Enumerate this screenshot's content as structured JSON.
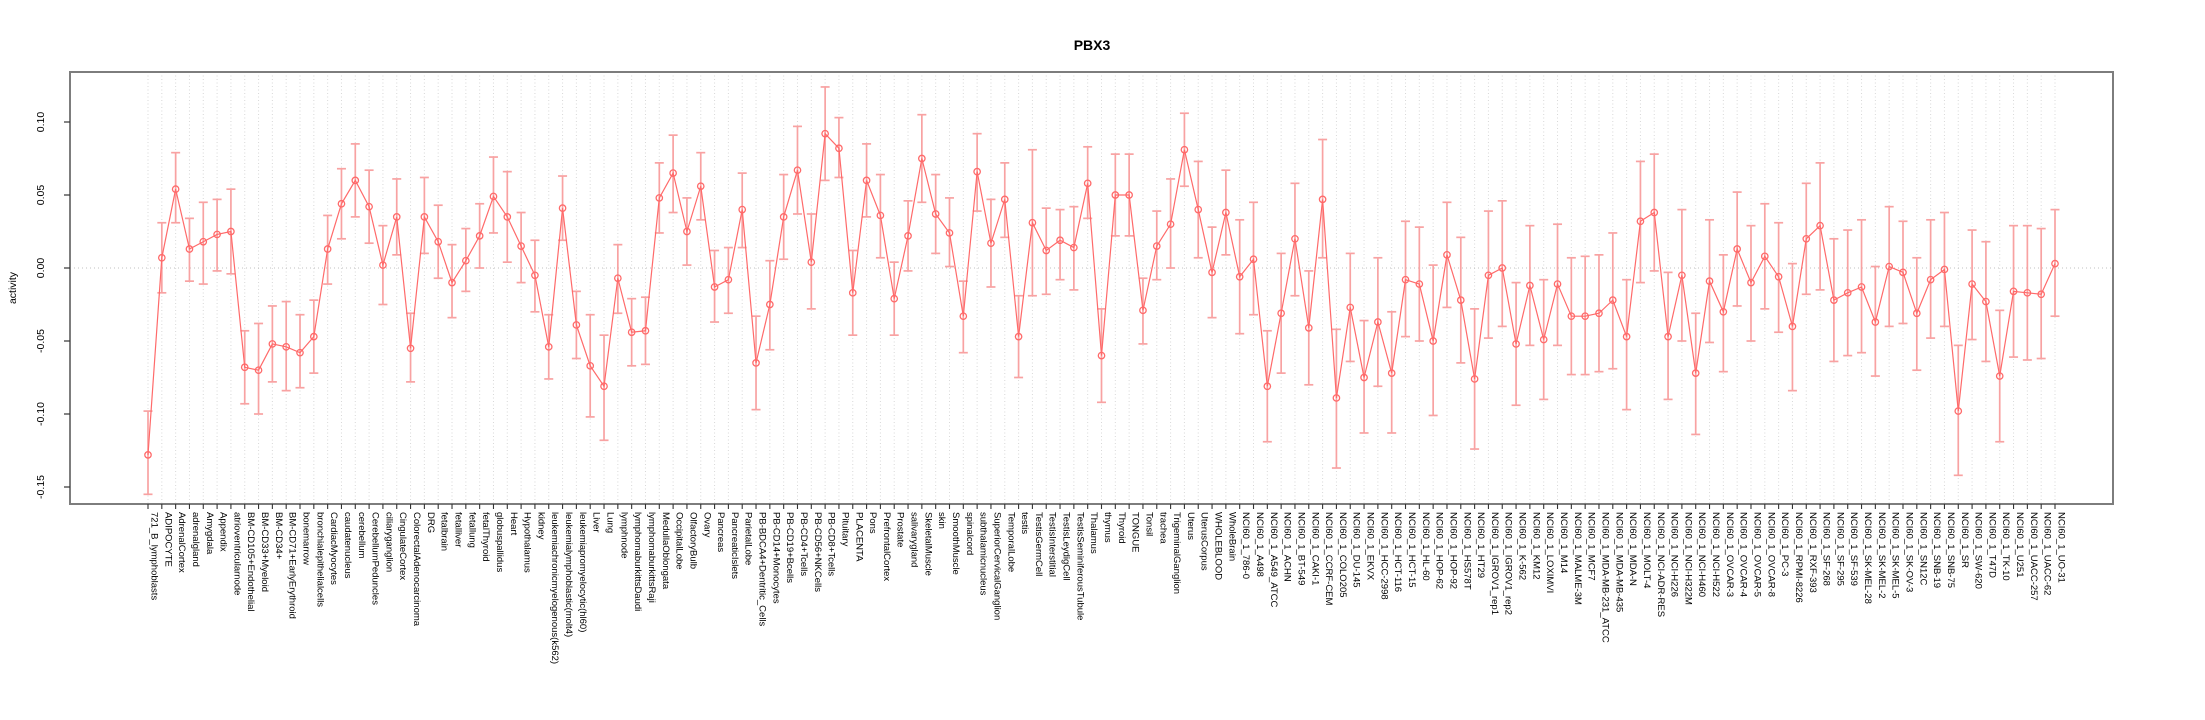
{
  "chart_data": {
    "type": "line",
    "title": "PBX3",
    "xlabel": "",
    "ylabel": "activity",
    "legend": "none",
    "grid": "vertical-dotted-per-category, dotted-zero-line",
    "point_style": "open-circle with error bars",
    "ylim": [
      -0.162,
      0.134
    ],
    "ytick_values": [
      0.1,
      0.05,
      0.0,
      -0.05,
      -0.1,
      -0.15
    ],
    "ytick_labels": [
      "0.10",
      "0.05",
      "0.00",
      "-0.05",
      "-0.10",
      "-0.15"
    ],
    "colors": {
      "series": "#ff6a6a",
      "error_bar": "#f8a2a2",
      "grid": "#d8d8d8",
      "zero_line": "#c0c0c0",
      "box": "#7d7d7d"
    },
    "categories": [
      "721_B_lymphoblasts",
      "ADIPOCYTE",
      "AdrenalCortex",
      "adrenalgland",
      "Amygdala",
      "Appendix",
      "atrioventricularnode",
      "BM-CD105+Endothelial",
      "BM-CD33+Myeloid",
      "BM-CD34+",
      "BM-CD71+EarlyErythroid",
      "bonemarrow",
      "bronchialepithelialcells",
      "CardiacMyocytes",
      "caudatenucleus",
      "cerebellum",
      "CerebellumPeduncles",
      "ciliaryganglion",
      "CingulateCortex",
      "ColorectalAdenocarcinoma",
      "DRG",
      "fetalbrain",
      "fetalliver",
      "fetallung",
      "fetalThyroid",
      "globuspallidus",
      "Heart",
      "Hypothalamus",
      "kidney",
      "leukemiachronicmyelogenous(k562)",
      "leukemialymphoblastic(molt4)",
      "leukemiapromyelocytic(hl60)",
      "Liver",
      "Lung",
      "lymphnode",
      "lymphomaburkittsDaudi",
      "lymphomaburkittsRaji",
      "MedullaOblongata",
      "OccipitalLobe",
      "OlfactoryBulb",
      "Ovary",
      "Pancreas",
      "PancreaticIslets",
      "ParietalLobe",
      "PB-BDCA4+Dentritic_Cells",
      "PB-CD14+Monocytes",
      "PB-CD19+Bcells",
      "PB-CD4+Tcells",
      "PB-CD56+NKCells",
      "PB-CD8+Tcells",
      "Pituitary",
      "PLACENTA",
      "Pons",
      "PrefrontalCortex",
      "Prostate",
      "salivarygland",
      "SkeletalMuscle",
      "skin",
      "SmoothMuscle",
      "spinalcord",
      "subthalamicnucleus",
      "SuperiorCervicalGanglion",
      "TemporalLobe",
      "testis",
      "TestisGermCell",
      "TestisInterstitial",
      "TestisLeydigCell",
      "TestisSeminiferousTubule",
      "Thalamus",
      "thymus",
      "Thyroid",
      "TONGUE",
      "Tonsil",
      "trachea",
      "TrigeminalGanglion",
      "Uterus",
      "UterusCorpus",
      "WHOLEBLOOD",
      "WholeBrain",
      "NCI60_1_786-0",
      "NCI60_1_A498",
      "NCI60_1_A549_ATCC",
      "NCI60_1_ACHN",
      "NCI60_1_BT-549",
      "NCI60_1_CAKI-1",
      "NCI60_1_CCRF-CEM",
      "NCI60_1_COLO205",
      "NCI60_1_DU-145",
      "NCI60_1_EKVX",
      "NCI60_1_HCC-2998",
      "NCI60_1_HCT-116",
      "NCI60_1_HCT-15",
      "NCI60_1_HL-60",
      "NCI60_1_HOP-62",
      "NCI60_1_HOP-92",
      "NCI60_1_HS578T",
      "NCI60_1_HT29",
      "NCI60_1_IGROV1_rep1",
      "NCI60_1_IGROV1_rep2",
      "NCI60_1_K-562",
      "NCI60_1_KM12",
      "NCI60_1_LOXIMVI",
      "NCI60_1_M14",
      "NCI60_1_MALME-3M",
      "NCI60_1_MCF7",
      "NCI60_1_MDA-MB-231_ATCC",
      "NCI60_1_MDA-MB-435",
      "NCI60_1_MDA-N",
      "NCI60_1_MOLT-4",
      "NCI60_1_NCI-ADR-RES",
      "NCI60_1_NCI-H226",
      "NCI60_1_NCI-H322M",
      "NCI60_1_NCI-H460",
      "NCI60_1_NCI-H522",
      "NCI60_1_OVCAR-3",
      "NCI60_1_OVCAR-4",
      "NCI60_1_OVCAR-5",
      "NCI60_1_OVCAR-8",
      "NCI60_1_PC-3",
      "NCI60_1_RPMI-8226",
      "NCI60_1_RXF-393",
      "NCI60_1_SF-268",
      "NCI60_1_SF-295",
      "NCI60_1_SF-539",
      "NCI60_1_SK-MEL-28",
      "NCI60_1_SK-MEL-2",
      "NCI60_1_SK-MEL-5",
      "NCI60_1_SK-OV-3",
      "NCI60_1_SN12C",
      "NCI60_1_SNB-19",
      "NCI60_1_SNB-75",
      "NCI60_1_SR",
      "NCI60_1_SW-620",
      "NCI60_1_T47D",
      "NCI60_1_TK-10",
      "NCI60_1_U251",
      "NCI60_1_UACC-257",
      "NCI60_1_UACC-62",
      "NCI60_1_UO-31"
    ],
    "values": [
      -0.128,
      0.007,
      0.054,
      0.013,
      0.018,
      0.023,
      0.025,
      -0.068,
      -0.07,
      -0.052,
      -0.054,
      -0.058,
      -0.047,
      0.013,
      0.044,
      0.06,
      0.042,
      0.002,
      0.035,
      -0.055,
      0.035,
      0.018,
      -0.01,
      0.005,
      0.022,
      0.049,
      0.035,
      0.015,
      -0.005,
      -0.054,
      0.041,
      -0.039,
      -0.067,
      -0.081,
      -0.007,
      -0.044,
      -0.043,
      0.048,
      0.065,
      0.025,
      0.056,
      -0.013,
      -0.008,
      0.04,
      -0.065,
      -0.025,
      0.035,
      0.067,
      0.004,
      0.092,
      0.082,
      -0.017,
      0.06,
      0.036,
      -0.021,
      0.022,
      0.075,
      0.037,
      0.024,
      -0.033,
      0.066,
      0.017,
      0.047,
      -0.047,
      0.031,
      0.012,
      0.019,
      0.014,
      0.058,
      -0.06,
      0.05,
      0.05,
      -0.029,
      0.015,
      0.03,
      0.081,
      0.04,
      -0.003,
      0.038,
      -0.006,
      0.006,
      -0.081,
      -0.031,
      0.02,
      -0.041,
      0.047,
      -0.089,
      -0.027,
      -0.075,
      -0.037,
      -0.072,
      -0.008,
      -0.011,
      -0.05,
      0.009,
      -0.022,
      -0.076,
      -0.005,
      0.0,
      -0.052,
      -0.012,
      -0.049,
      -0.011,
      -0.033,
      -0.033,
      -0.031,
      -0.022,
      -0.047,
      0.032,
      0.038,
      -0.047,
      -0.005,
      -0.072,
      -0.009,
      -0.03,
      0.013,
      -0.01,
      0.008,
      -0.006,
      -0.04,
      0.02,
      0.029,
      -0.022,
      -0.017,
      -0.013,
      -0.037,
      0.001,
      -0.003,
      -0.031,
      -0.008,
      -0.001,
      -0.098,
      -0.011,
      -0.023,
      -0.074,
      -0.016,
      -0.017,
      -0.018,
      0.003
    ],
    "ci_high": [
      -0.098,
      0.031,
      0.079,
      0.034,
      0.045,
      0.047,
      0.054,
      -0.043,
      -0.038,
      -0.026,
      -0.023,
      -0.032,
      -0.022,
      0.036,
      0.068,
      0.085,
      0.067,
      0.029,
      0.061,
      -0.031,
      0.062,
      0.043,
      0.016,
      0.027,
      0.044,
      0.076,
      0.066,
      0.038,
      0.019,
      -0.032,
      0.063,
      -0.016,
      -0.032,
      -0.046,
      0.016,
      -0.021,
      -0.02,
      0.072,
      0.091,
      0.048,
      0.079,
      0.012,
      0.014,
      0.065,
      -0.033,
      0.005,
      0.064,
      0.097,
      0.037,
      0.124,
      0.103,
      0.012,
      0.085,
      0.064,
      0.004,
      0.046,
      0.105,
      0.064,
      0.048,
      -0.009,
      0.092,
      0.047,
      0.072,
      -0.019,
      0.081,
      0.041,
      0.04,
      0.042,
      0.083,
      -0.028,
      0.078,
      0.078,
      -0.007,
      0.039,
      0.061,
      0.106,
      0.073,
      0.028,
      0.067,
      0.033,
      0.045,
      -0.043,
      0.01,
      0.058,
      -0.002,
      0.088,
      -0.042,
      0.01,
      -0.036,
      0.007,
      -0.03,
      0.032,
      0.028,
      0.002,
      0.045,
      0.021,
      -0.028,
      0.039,
      0.046,
      -0.01,
      0.029,
      -0.008,
      0.03,
      0.007,
      0.008,
      0.009,
      0.024,
      -0.008,
      0.073,
      0.078,
      -0.003,
      0.04,
      -0.031,
      0.033,
      0.009,
      0.052,
      0.029,
      0.044,
      0.031,
      0.003,
      0.058,
      0.072,
      0.02,
      0.026,
      0.033,
      0.001,
      0.042,
      0.032,
      0.007,
      0.033,
      0.038,
      -0.053,
      0.026,
      0.018,
      -0.029,
      0.029,
      0.029,
      0.027,
      0.04
    ],
    "ci_low": [
      -0.155,
      -0.017,
      0.031,
      -0.009,
      -0.011,
      -0.002,
      -0.004,
      -0.093,
      -0.1,
      -0.078,
      -0.084,
      -0.082,
      -0.072,
      -0.011,
      0.02,
      0.035,
      0.017,
      -0.025,
      0.009,
      -0.078,
      0.01,
      -0.007,
      -0.034,
      -0.016,
      0.0,
      0.024,
      0.004,
      -0.01,
      -0.03,
      -0.076,
      0.019,
      -0.062,
      -0.102,
      -0.118,
      -0.031,
      -0.067,
      -0.066,
      0.024,
      0.038,
      0.002,
      0.033,
      -0.037,
      -0.031,
      0.014,
      -0.097,
      -0.056,
      0.006,
      0.037,
      -0.028,
      0.06,
      0.062,
      -0.046,
      0.035,
      0.007,
      -0.046,
      -0.002,
      0.045,
      0.01,
      0.001,
      -0.058,
      0.039,
      -0.013,
      0.021,
      -0.075,
      -0.019,
      -0.018,
      -0.008,
      -0.015,
      0.034,
      -0.092,
      0.022,
      0.022,
      -0.052,
      -0.008,
      0.0,
      0.056,
      0.007,
      -0.034,
      0.009,
      -0.045,
      -0.032,
      -0.119,
      -0.072,
      -0.019,
      -0.08,
      0.007,
      -0.137,
      -0.064,
      -0.113,
      -0.081,
      -0.113,
      -0.047,
      -0.05,
      -0.101,
      -0.027,
      -0.065,
      -0.124,
      -0.048,
      -0.04,
      -0.094,
      -0.053,
      -0.09,
      -0.053,
      -0.073,
      -0.073,
      -0.071,
      -0.069,
      -0.097,
      -0.01,
      -0.002,
      -0.09,
      -0.05,
      -0.114,
      -0.051,
      -0.071,
      -0.026,
      -0.05,
      -0.028,
      -0.044,
      -0.084,
      -0.018,
      -0.015,
      -0.064,
      -0.06,
      -0.058,
      -0.074,
      -0.04,
      -0.038,
      -0.07,
      -0.048,
      -0.04,
      -0.142,
      -0.049,
      -0.064,
      -0.119,
      -0.061,
      -0.063,
      -0.062,
      -0.033
    ]
  }
}
